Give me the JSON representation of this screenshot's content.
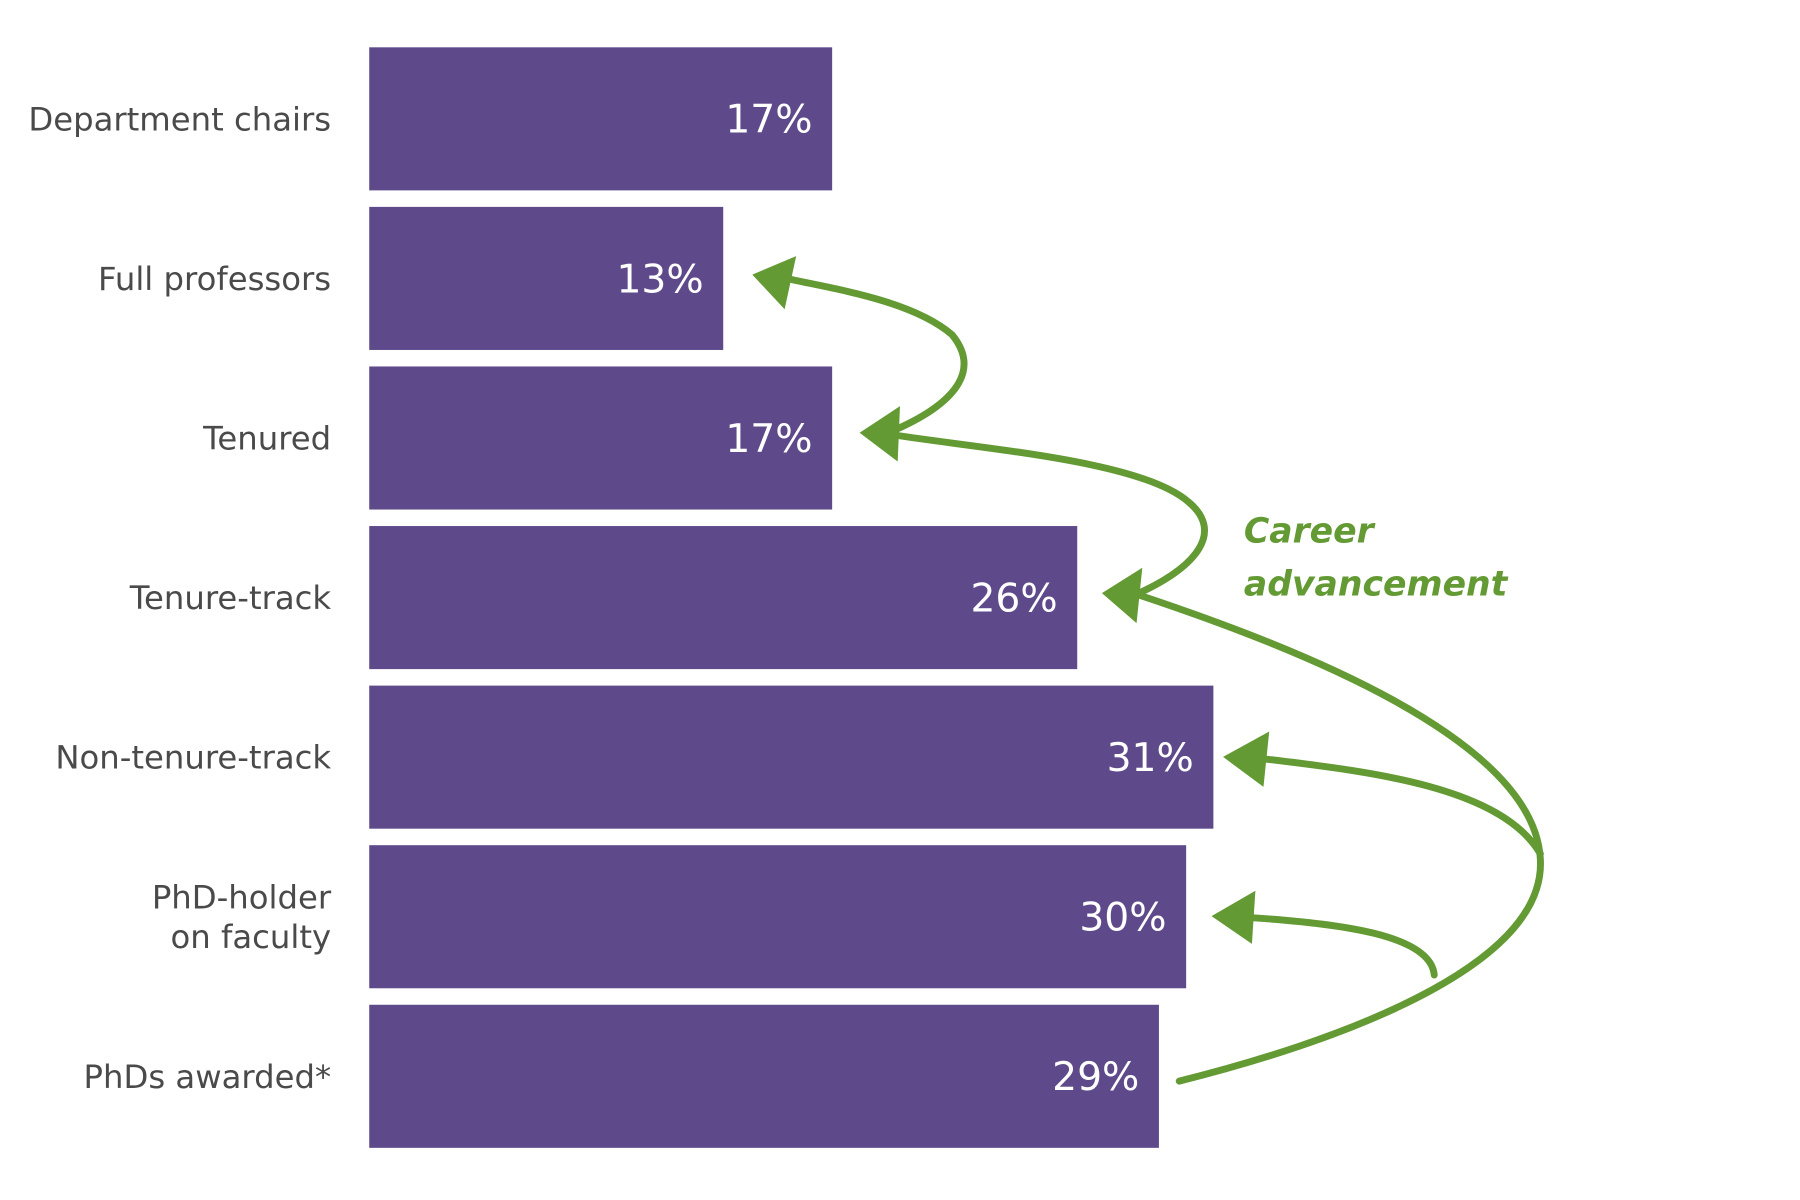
{
  "chart_data": {
    "type": "bar",
    "orientation": "horizontal",
    "categories": [
      "Department chairs",
      "Full professors",
      "Tenured",
      "Tenure-track",
      "Non-tenure-track",
      "PhD-holder\non faculty",
      "PhDs awarded*"
    ],
    "values": [
      17,
      13,
      17,
      26,
      31,
      30,
      29
    ],
    "value_labels": [
      "17%",
      "13%",
      "17%",
      "26%",
      "31%",
      "30%",
      "29%"
    ],
    "unit": "%",
    "title": "",
    "xlabel": "",
    "ylabel": "",
    "grid": false,
    "annotation": "Career advancement",
    "colors": {
      "bar": "#5e4a8b",
      "annotation": "#639a33",
      "label": "#4a4a4a",
      "value_text": "#ffffff"
    }
  }
}
